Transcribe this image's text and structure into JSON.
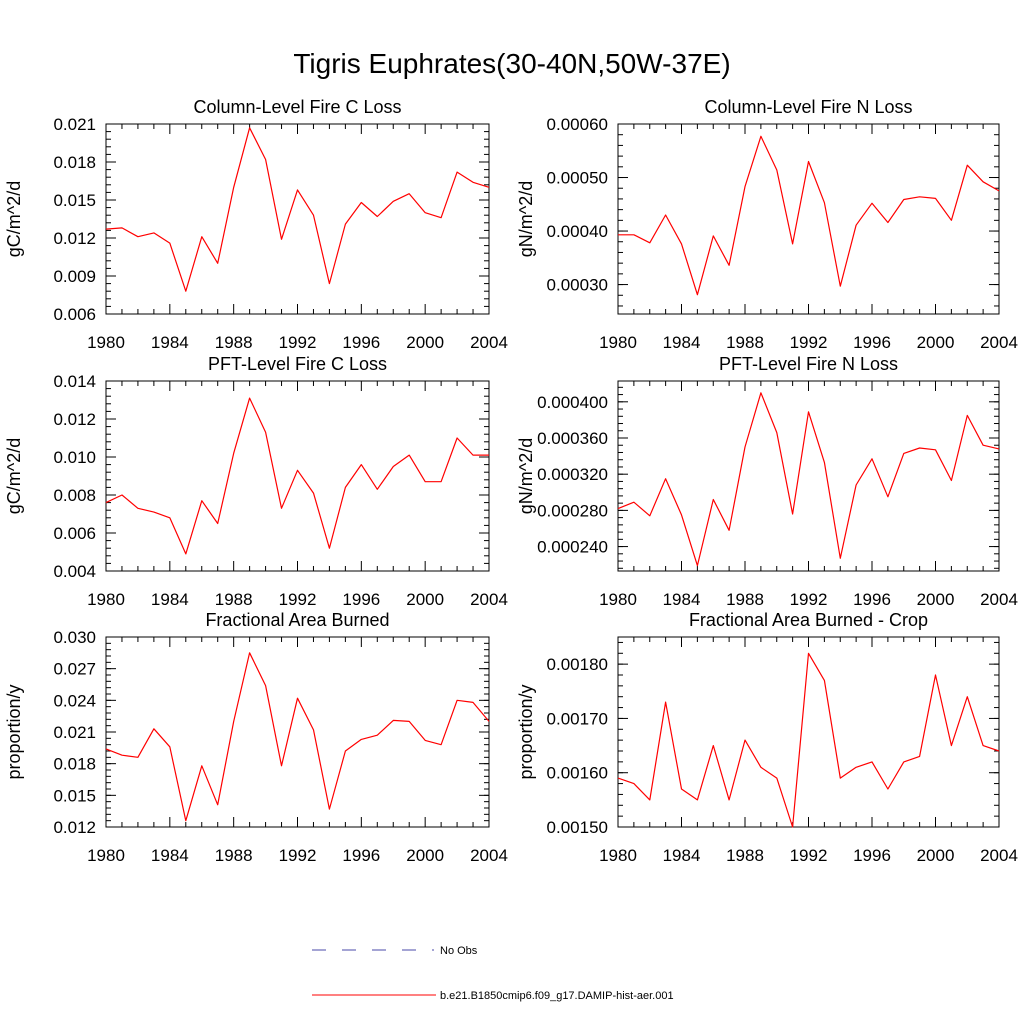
{
  "figure": {
    "title": "Tigris Euphrates(30-40N,50W-37E)"
  },
  "legend": {
    "entries": [
      {
        "label": "No Obs",
        "color": "#4a4aa8",
        "style": "dashed"
      },
      {
        "label": "b.e21.B1850cmip6.f09_g17.DAMIP-hist-aer.001",
        "color": "#ff0000",
        "style": "solid"
      }
    ]
  },
  "chart_data": [
    {
      "type": "line",
      "title": "Column-Level Fire C Loss",
      "ylabel": "gC/m^2/d",
      "xlim": [
        1980,
        2004
      ],
      "ylim": [
        0.006,
        0.021
      ],
      "xticks": [
        1980,
        1984,
        1988,
        1992,
        1996,
        2000,
        2004
      ],
      "xtick_labels": [
        "1980",
        "1984",
        "1988",
        "1992",
        "1996",
        "2000",
        "2004"
      ],
      "yticks": [
        0.006,
        0.009,
        0.012,
        0.015,
        0.018,
        0.021
      ],
      "ytick_labels": [
        "0.006",
        "0.009",
        "0.012",
        "0.015",
        "0.018",
        "0.021"
      ],
      "x": [
        1980,
        1981,
        1982,
        1983,
        1984,
        1985,
        1986,
        1987,
        1988,
        1989,
        1990,
        1991,
        1992,
        1993,
        1994,
        1995,
        1996,
        1997,
        1998,
        1999,
        2000,
        2001,
        2002,
        2003,
        2004
      ],
      "series": [
        {
          "color": "#ff0000",
          "values": [
            0.0127,
            0.0128,
            0.0121,
            0.0124,
            0.0116,
            0.0078,
            0.0121,
            0.01,
            0.016,
            0.0207,
            0.0182,
            0.0119,
            0.0158,
            0.0138,
            0.0084,
            0.0131,
            0.0148,
            0.0137,
            0.0149,
            0.0155,
            0.014,
            0.0136,
            0.0172,
            0.0164,
            0.016
          ]
        }
      ]
    },
    {
      "type": "line",
      "title": "Column-Level Fire N Loss",
      "ylabel": "gN/m^2/d",
      "xlim": [
        1980,
        2004
      ],
      "ylim": [
        0.000245,
        0.0006
      ],
      "xticks": [
        1980,
        1984,
        1988,
        1992,
        1996,
        2000,
        2004
      ],
      "xtick_labels": [
        "1980",
        "1984",
        "1988",
        "1992",
        "1996",
        "2000",
        "2004"
      ],
      "yticks": [
        0.0003,
        0.0004,
        0.0005,
        0.0006
      ],
      "ytick_labels": [
        "0.00030",
        "0.00040",
        "0.00050",
        "0.00060"
      ],
      "x": [
        1980,
        1981,
        1982,
        1983,
        1984,
        1985,
        1986,
        1987,
        1988,
        1989,
        1990,
        1991,
        1992,
        1993,
        1994,
        1995,
        1996,
        1997,
        1998,
        1999,
        2000,
        2001,
        2002,
        2003,
        2004
      ],
      "series": [
        {
          "color": "#ff0000",
          "values": [
            0.000393,
            0.000393,
            0.000378,
            0.00043,
            0.000376,
            0.000281,
            0.000391,
            0.000336,
            0.000483,
            0.000577,
            0.000514,
            0.000376,
            0.00053,
            0.000453,
            0.000297,
            0.000411,
            0.000452,
            0.000416,
            0.000459,
            0.000464,
            0.000461,
            0.00042,
            0.000523,
            0.000492,
            0.000475
          ]
        }
      ]
    },
    {
      "type": "line",
      "title": "PFT-Level Fire C Loss",
      "ylabel": "gC/m^2/d",
      "xlim": [
        1980,
        2004
      ],
      "ylim": [
        0.004,
        0.014
      ],
      "xticks": [
        1980,
        1984,
        1988,
        1992,
        1996,
        2000,
        2004
      ],
      "xtick_labels": [
        "1980",
        "1984",
        "1988",
        "1992",
        "1996",
        "2000",
        "2004"
      ],
      "yticks": [
        0.004,
        0.006,
        0.008,
        0.01,
        0.012,
        0.014
      ],
      "ytick_labels": [
        "0.004",
        "0.006",
        "0.008",
        "0.010",
        "0.012",
        "0.014"
      ],
      "x": [
        1980,
        1981,
        1982,
        1983,
        1984,
        1985,
        1986,
        1987,
        1988,
        1989,
        1990,
        1991,
        1992,
        1993,
        1994,
        1995,
        1996,
        1997,
        1998,
        1999,
        2000,
        2001,
        2002,
        2003,
        2004
      ],
      "series": [
        {
          "color": "#ff0000",
          "values": [
            0.0076,
            0.008,
            0.0073,
            0.0071,
            0.0068,
            0.0049,
            0.0077,
            0.0065,
            0.0102,
            0.0131,
            0.0113,
            0.0073,
            0.0093,
            0.0081,
            0.0052,
            0.0084,
            0.0096,
            0.0083,
            0.0095,
            0.0101,
            0.0087,
            0.0087,
            0.011,
            0.0101,
            0.0101
          ]
        }
      ]
    },
    {
      "type": "line",
      "title": "PFT-Level Fire N Loss",
      "ylabel": "gN/m^2/d",
      "xlim": [
        1980,
        2004
      ],
      "ylim": [
        0.000213,
        0.000423
      ],
      "xticks": [
        1980,
        1984,
        1988,
        1992,
        1996,
        2000,
        2004
      ],
      "xtick_labels": [
        "1980",
        "1984",
        "1988",
        "1992",
        "1996",
        "2000",
        "2004"
      ],
      "yticks": [
        0.00024,
        0.00028,
        0.00032,
        0.00036,
        0.0004
      ],
      "ytick_labels": [
        "0.000240",
        "0.000280",
        "0.000320",
        "0.000360",
        "0.000400"
      ],
      "x": [
        1980,
        1981,
        1982,
        1983,
        1984,
        1985,
        1986,
        1987,
        1988,
        1989,
        1990,
        1991,
        1992,
        1993,
        1994,
        1995,
        1996,
        1997,
        1998,
        1999,
        2000,
        2001,
        2002,
        2003,
        2004
      ],
      "series": [
        {
          "color": "#ff0000",
          "values": [
            0.000282,
            0.000289,
            0.000274,
            0.000315,
            0.000275,
            0.000219,
            0.000292,
            0.000258,
            0.00035,
            0.00041,
            0.000366,
            0.000276,
            0.000389,
            0.000333,
            0.000227,
            0.000308,
            0.000337,
            0.000295,
            0.000343,
            0.000349,
            0.000347,
            0.000313,
            0.000385,
            0.000352,
            0.000348
          ]
        }
      ]
    },
    {
      "type": "line",
      "title": "Fractional Area Burned",
      "ylabel": "proportion/y",
      "xlim": [
        1980,
        2004
      ],
      "ylim": [
        0.012,
        0.03
      ],
      "xticks": [
        1980,
        1984,
        1988,
        1992,
        1996,
        2000,
        2004
      ],
      "xtick_labels": [
        "1980",
        "1984",
        "1988",
        "1992",
        "1996",
        "2000",
        "2004"
      ],
      "yticks": [
        0.012,
        0.015,
        0.018,
        0.021,
        0.024,
        0.027,
        0.03
      ],
      "ytick_labels": [
        "0.012",
        "0.015",
        "0.018",
        "0.021",
        "0.024",
        "0.027",
        "0.030"
      ],
      "x": [
        1980,
        1981,
        1982,
        1983,
        1984,
        1985,
        1986,
        1987,
        1988,
        1989,
        1990,
        1991,
        1992,
        1993,
        1994,
        1995,
        1996,
        1997,
        1998,
        1999,
        2000,
        2001,
        2002,
        2003,
        2004
      ],
      "series": [
        {
          "color": "#ff0000",
          "values": [
            0.0194,
            0.0188,
            0.0186,
            0.0213,
            0.0196,
            0.0126,
            0.0178,
            0.0141,
            0.022,
            0.0285,
            0.0254,
            0.0178,
            0.0242,
            0.0212,
            0.0137,
            0.0192,
            0.0203,
            0.0207,
            0.0221,
            0.022,
            0.0202,
            0.0198,
            0.024,
            0.0238,
            0.022
          ]
        }
      ]
    },
    {
      "type": "line",
      "title": "Fractional Area Burned - Crop",
      "ylabel": "proportion/y",
      "xlim": [
        1980,
        2004
      ],
      "ylim": [
        0.0015,
        0.00185
      ],
      "xticks": [
        1980,
        1984,
        1988,
        1992,
        1996,
        2000,
        2004
      ],
      "xtick_labels": [
        "1980",
        "1984",
        "1988",
        "1992",
        "1996",
        "2000",
        "2004"
      ],
      "yticks": [
        0.0015,
        0.0016,
        0.0017,
        0.0018
      ],
      "ytick_labels": [
        "0.00150",
        "0.00160",
        "0.00170",
        "0.00180"
      ],
      "x": [
        1980,
        1981,
        1982,
        1983,
        1984,
        1985,
        1986,
        1987,
        1988,
        1989,
        1990,
        1991,
        1992,
        1993,
        1994,
        1995,
        1996,
        1997,
        1998,
        1999,
        2000,
        2001,
        2002,
        2003,
        2004
      ],
      "series": [
        {
          "color": "#ff0000",
          "values": [
            0.00159,
            0.00158,
            0.00155,
            0.00173,
            0.00157,
            0.00155,
            0.00165,
            0.00155,
            0.00166,
            0.00161,
            0.00159,
            0.0015,
            0.00182,
            0.00177,
            0.00159,
            0.00161,
            0.00162,
            0.00157,
            0.00162,
            0.00163,
            0.00178,
            0.00165,
            0.00174,
            0.00165,
            0.00164
          ]
        }
      ]
    }
  ]
}
